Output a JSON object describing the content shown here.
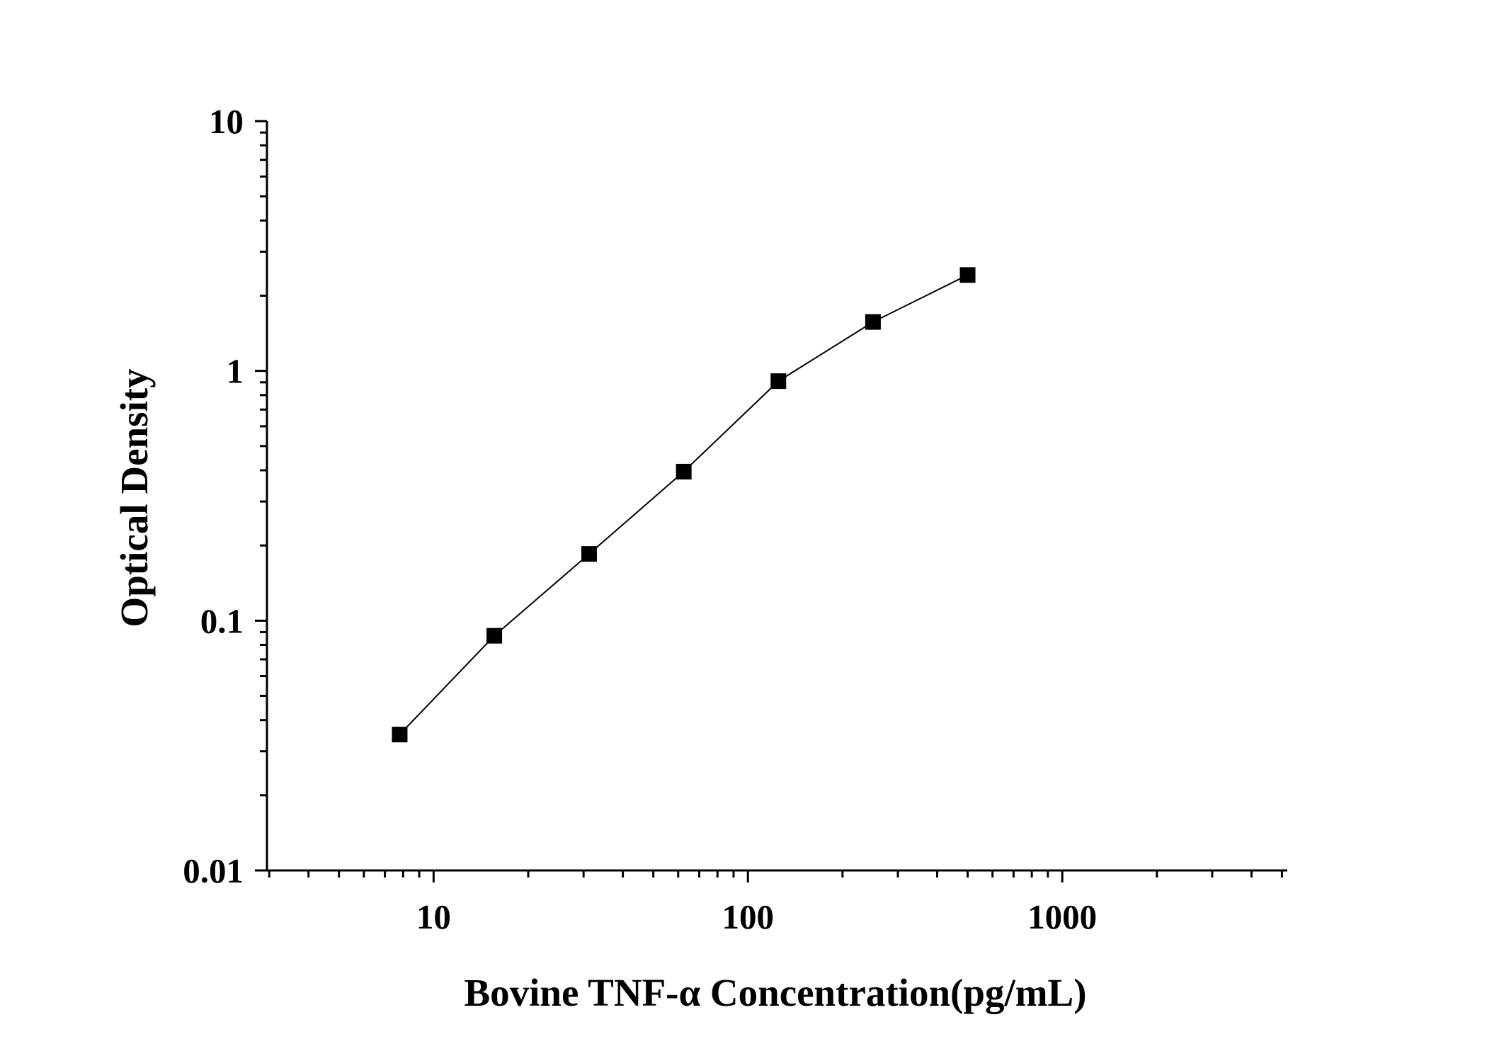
{
  "chart_data": {
    "type": "scatter",
    "title": "",
    "xlabel": "Bovine TNF-α Concentration(pg/mL)",
    "ylabel": "Optical Density",
    "xscale": "log",
    "yscale": "log",
    "xlim": [
      2.95,
      5200
    ],
    "ylim": [
      0.01,
      10
    ],
    "x_ticks": [
      10,
      100,
      1000
    ],
    "x_tick_labels": [
      "10",
      "100",
      "1000"
    ],
    "y_ticks": [
      0.01,
      0.1,
      1,
      10
    ],
    "y_tick_labels": [
      "0.01",
      "0.1",
      "1",
      "10"
    ],
    "grid": false,
    "legend": "none",
    "marker": "square",
    "line": "fitted curve through points",
    "colors": {
      "line": "#000000",
      "marker": "#000000",
      "axis": "#000000"
    },
    "series": [
      {
        "x": [
          7.8,
          15.6,
          31.25,
          62.5,
          125,
          250,
          500
        ],
        "y": [
          0.035,
          0.087,
          0.185,
          0.395,
          0.91,
          1.57,
          2.42
        ]
      }
    ]
  }
}
